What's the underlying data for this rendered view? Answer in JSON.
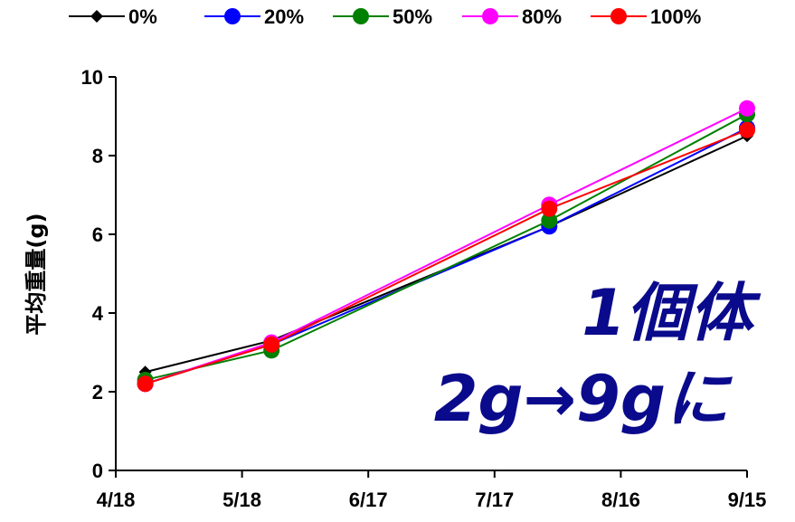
{
  "chart_data": {
    "type": "line",
    "x": [
      "4/25",
      "5/25",
      "7/30",
      "9/15"
    ],
    "xaxis": {
      "ticks": [
        "4/18",
        "5/18",
        "6/17",
        "7/17",
        "8/16",
        "9/15"
      ]
    },
    "ylabel": "平均重量(g)",
    "ylim": [
      0,
      10
    ],
    "yticks": [
      "0",
      "2",
      "4",
      "6",
      "8",
      "10"
    ],
    "grid": false,
    "legend_position": "top",
    "series": [
      {
        "name": "0%",
        "color": "#000000",
        "marker": "diamond",
        "values": [
          2.5,
          3.3,
          6.2,
          8.5
        ]
      },
      {
        "name": "20%",
        "color": "#0000ff",
        "marker": "circle",
        "values": [
          2.2,
          3.2,
          6.2,
          8.7
        ]
      },
      {
        "name": "50%",
        "color": "#008000",
        "marker": "circle",
        "values": [
          2.3,
          3.05,
          6.35,
          9.05
        ]
      },
      {
        "name": "80%",
        "color": "#ff00ff",
        "marker": "circle",
        "values": [
          2.2,
          3.25,
          6.75,
          9.2
        ]
      },
      {
        "name": "100%",
        "color": "#ff0000",
        "marker": "circle",
        "values": [
          2.2,
          3.2,
          6.65,
          8.65
        ]
      }
    ],
    "annotations": [
      "1個体",
      "2g→9gに"
    ],
    "annotation_color": "#0a0a8c"
  }
}
